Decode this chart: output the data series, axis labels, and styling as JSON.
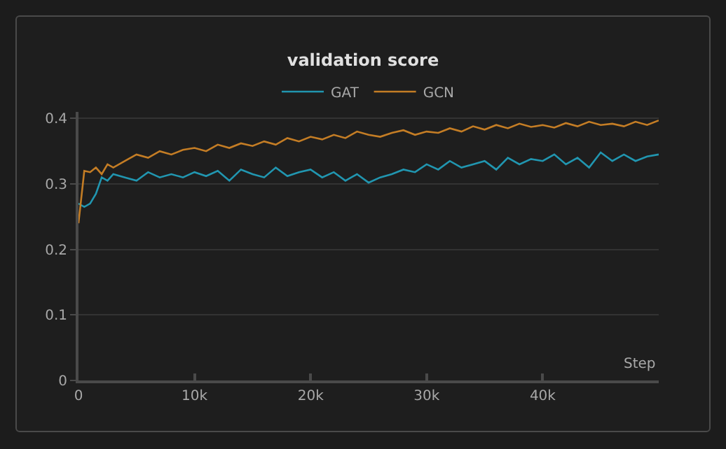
{
  "chart_data": {
    "type": "line",
    "title": "validation score",
    "xlabel": "Step",
    "x": [
      0,
      500,
      1000,
      1500,
      2000,
      2500,
      3000,
      4000,
      5000,
      6000,
      7000,
      8000,
      9000,
      10000,
      11000,
      12000,
      13000,
      14000,
      15000,
      16000,
      17000,
      18000,
      19000,
      20000,
      21000,
      22000,
      23000,
      24000,
      25000,
      26000,
      27000,
      28000,
      29000,
      30000,
      31000,
      32000,
      33000,
      34000,
      35000,
      36000,
      37000,
      38000,
      39000,
      40000,
      41000,
      42000,
      43000,
      44000,
      45000,
      46000,
      47000,
      48000,
      49000,
      50000
    ],
    "series": [
      {
        "name": "GAT",
        "color": "#2196b0",
        "values": [
          0.27,
          0.265,
          0.27,
          0.285,
          0.31,
          0.305,
          0.315,
          0.31,
          0.305,
          0.318,
          0.31,
          0.315,
          0.31,
          0.318,
          0.312,
          0.32,
          0.305,
          0.322,
          0.315,
          0.31,
          0.325,
          0.312,
          0.318,
          0.322,
          0.31,
          0.318,
          0.305,
          0.315,
          0.302,
          0.31,
          0.315,
          0.322,
          0.318,
          0.33,
          0.322,
          0.335,
          0.325,
          0.33,
          0.335,
          0.322,
          0.34,
          0.33,
          0.338,
          0.335,
          0.345,
          0.33,
          0.34,
          0.325,
          0.348,
          0.335,
          0.345,
          0.335,
          0.342,
          0.345
        ]
      },
      {
        "name": "GCN",
        "color": "#c47d25",
        "values": [
          0.24,
          0.32,
          0.318,
          0.325,
          0.315,
          0.33,
          0.325,
          0.335,
          0.345,
          0.34,
          0.35,
          0.345,
          0.352,
          0.355,
          0.35,
          0.36,
          0.355,
          0.362,
          0.358,
          0.365,
          0.36,
          0.37,
          0.365,
          0.372,
          0.368,
          0.375,
          0.37,
          0.38,
          0.375,
          0.372,
          0.378,
          0.382,
          0.375,
          0.38,
          0.378,
          0.385,
          0.38,
          0.388,
          0.383,
          0.39,
          0.385,
          0.392,
          0.387,
          0.39,
          0.386,
          0.393,
          0.388,
          0.395,
          0.39,
          0.392,
          0.388,
          0.395,
          0.39,
          0.397
        ]
      }
    ],
    "xlim": [
      0,
      50000
    ],
    "xticks": [
      0,
      {
        "value": 10000,
        "label": "10k"
      },
      {
        "value": 20000,
        "label": "20k"
      },
      {
        "value": 30000,
        "label": "30k"
      },
      {
        "value": 40000,
        "label": "40k"
      }
    ],
    "ylim": [
      0,
      0.41
    ],
    "yticks": [
      0,
      0.1,
      0.2,
      0.3,
      0.4
    ],
    "grid": "y",
    "legend": "top",
    "marker": "none",
    "line_style": "solid"
  }
}
